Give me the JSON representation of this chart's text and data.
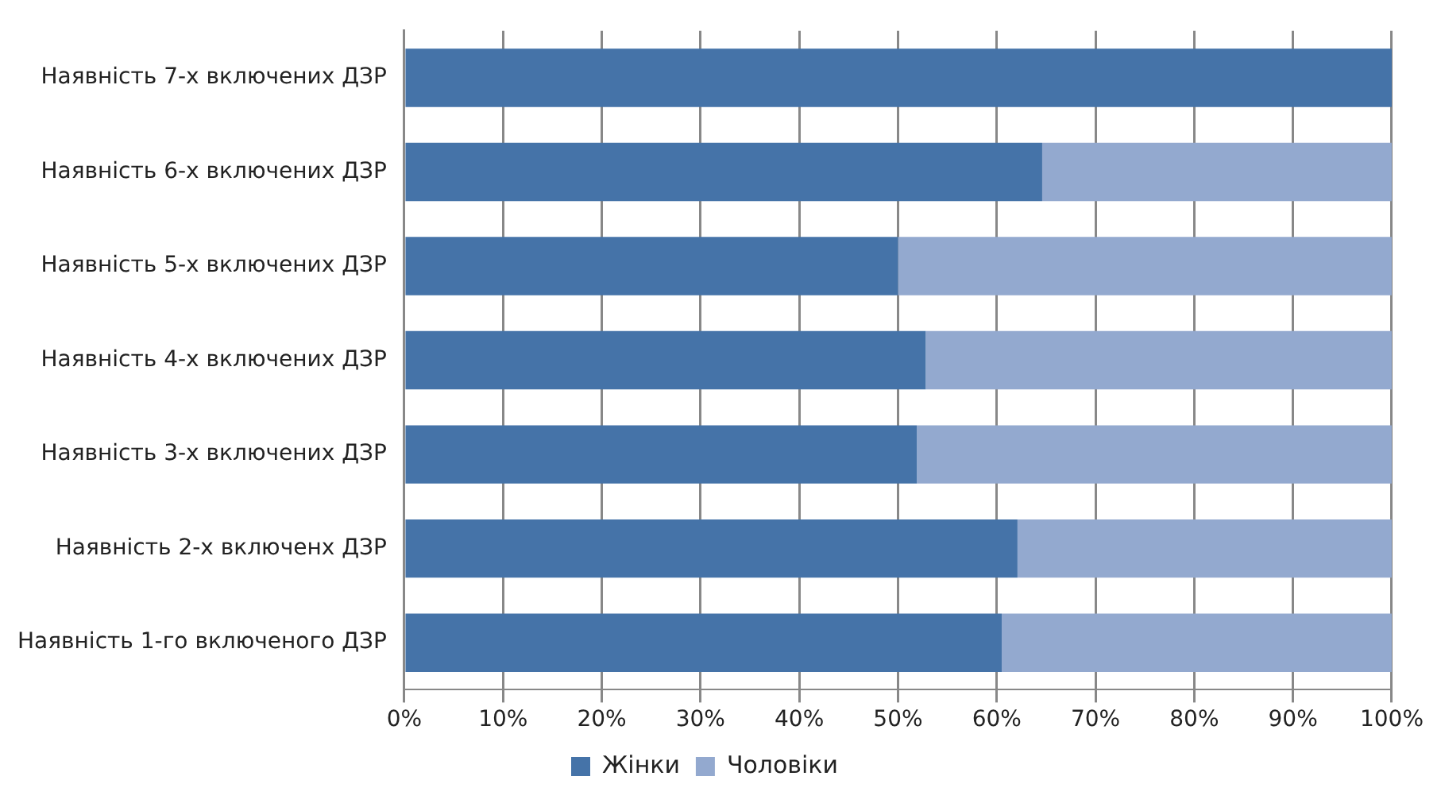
{
  "chart_data": {
    "type": "bar",
    "orientation": "horizontal",
    "stacked": true,
    "categories": [
      "Наявність 7-х включених ДЗР",
      "Наявність 6-х включених ДЗР",
      "Наявність 5-х включених ДЗР",
      "Наявність 4-х включених ДЗР",
      "Наявність 3-х включених ДЗР",
      "Наявність 2-х включенх ДЗР",
      "Наявність 1-го включеного ДЗР"
    ],
    "series": [
      {
        "name": "Жінки",
        "color": "#4573a8",
        "values": [
          100,
          64.6,
          50,
          52.8,
          51.9,
          62.1,
          60.5
        ]
      },
      {
        "name": "Чоловіки",
        "color": "#93a9cf",
        "values": [
          0,
          35.4,
          50,
          47.2,
          48.1,
          37.9,
          39.5
        ]
      }
    ],
    "xlim": [
      0,
      100
    ],
    "xticks": [
      {
        "value": 0,
        "label": "0%"
      },
      {
        "value": 10,
        "label": "10%"
      },
      {
        "value": 20,
        "label": "20%"
      },
      {
        "value": 30,
        "label": "30%"
      },
      {
        "value": 40,
        "label": "40%"
      },
      {
        "value": 50,
        "label": "50%"
      },
      {
        "value": 60,
        "label": "60%"
      },
      {
        "value": 70,
        "label": "70%"
      },
      {
        "value": 80,
        "label": "80%"
      },
      {
        "value": 90,
        "label": "90%"
      },
      {
        "value": 100,
        "label": "100%"
      }
    ],
    "grid": "x",
    "legend": "bottom"
  }
}
